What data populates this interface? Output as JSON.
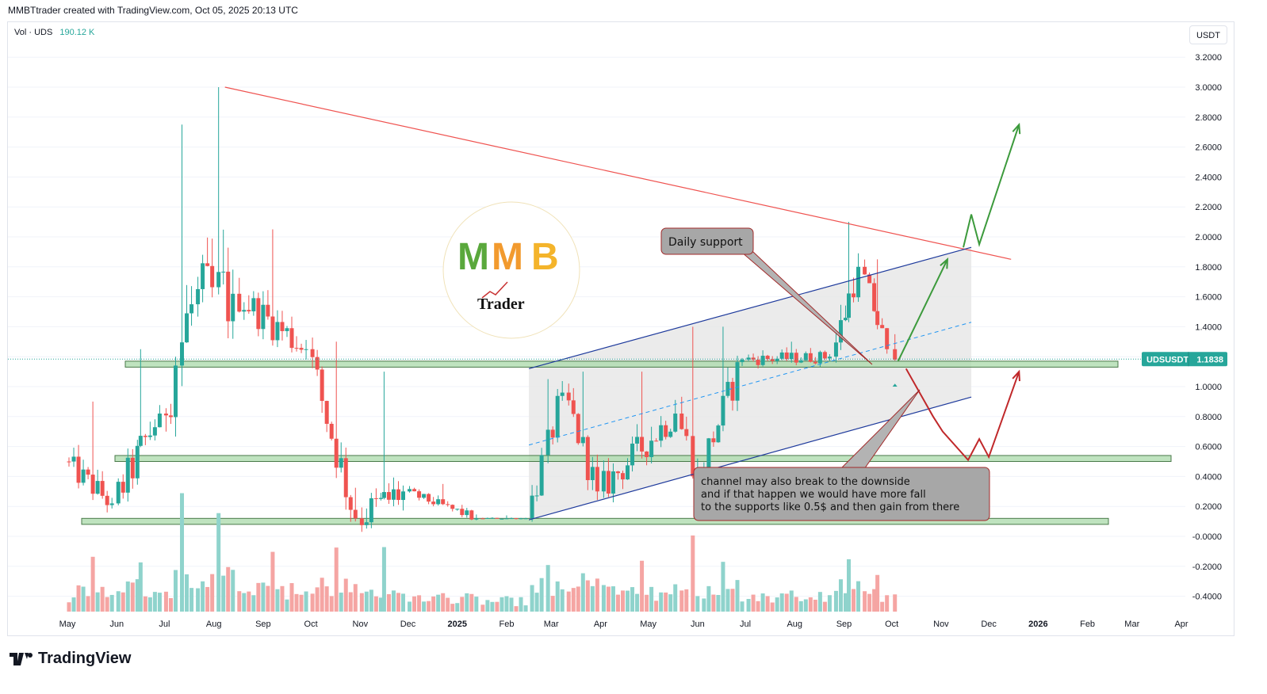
{
  "header": {
    "attribution": "MMBTtrader created with TradingView.com, Oct 05, 2025 20:13 UTC"
  },
  "volume_legend": {
    "label": "Vol · UDS",
    "value": "190.12 K"
  },
  "price_axis_unit": "USDT",
  "price_tag": {
    "symbol": "UDSUSDT",
    "price": "1.1838"
  },
  "footer": {
    "brand": "TradingView"
  },
  "colors": {
    "up": "#26a69a",
    "down": "#ef5350",
    "vol_up": "#8fd3cc",
    "vol_down": "#f5a5a3",
    "trend": "#ef5350",
    "channel": "#1e3a9c",
    "zone": "#a9d9a9",
    "arrow_up": "#3c9a3c",
    "arrow_down": "#c0282a"
  },
  "logo": {
    "letters": "MMB",
    "sub": "Trader"
  },
  "annotations": {
    "daily_support": "Daily support",
    "channel_note": [
      "channel may also break to the downside",
      "and if that happen we would have more fall",
      "to the supports like 0.5$ and then gain from there"
    ]
  },
  "chart_data": {
    "type": "candlestick",
    "symbol": "UDSUSDT",
    "ylim": [
      -0.5,
      3.3
    ],
    "y_ticks": [
      "3.2000",
      "3.0000",
      "2.8000",
      "2.6000",
      "2.4000",
      "2.2000",
      "2.0000",
      "1.8000",
      "1.6000",
      "1.4000",
      "1.2000",
      "1.0000",
      "0.8000",
      "0.6000",
      "0.4000",
      "0.2000",
      "-0.0000",
      "-0.2000",
      "-0.4000"
    ],
    "x_ticks": [
      "May",
      "Jun",
      "Jul",
      "Aug",
      "Sep",
      "Oct",
      "Nov",
      "Dec",
      "2025",
      "Feb",
      "Mar",
      "Apr",
      "May",
      "Jun",
      "Jul",
      "Aug",
      "Sep",
      "Oct",
      "Nov",
      "Dec",
      "2026",
      "Feb",
      "Mar",
      "Apr"
    ],
    "last_price": 1.1838,
    "support_zones": [
      [
        1.13,
        1.17
      ],
      [
        0.5,
        0.54
      ],
      [
        0.08,
        0.12
      ]
    ],
    "price_segments": [
      {
        "from": "2024-05-01",
        "to": "2024-05-31",
        "o": 0.5,
        "c": 0.22,
        "hi": 0.9,
        "lo": 0.16
      },
      {
        "from": "2024-06-01",
        "to": "2024-06-30",
        "o": 0.22,
        "c": 0.82,
        "hi": 1.25,
        "lo": 0.15
      },
      {
        "from": "2024-07-01",
        "to": "2024-07-20",
        "o": 0.82,
        "c": 1.55,
        "hi": 2.75,
        "lo": 0.5
      },
      {
        "from": "2024-07-21",
        "to": "2024-08-15",
        "o": 1.55,
        "c": 1.62,
        "hi": 3.0,
        "lo": 0.65
      },
      {
        "from": "2024-08-16",
        "to": "2024-09-30",
        "o": 1.62,
        "c": 1.25,
        "hi": 2.05,
        "lo": 1.1
      },
      {
        "from": "2024-10-01",
        "to": "2024-10-31",
        "o": 1.25,
        "c": 0.12,
        "hi": 1.3,
        "lo": 0.05
      },
      {
        "from": "2024-11-01",
        "to": "2024-11-30",
        "o": 0.12,
        "c": 0.3,
        "hi": 1.1,
        "lo": 0.05
      },
      {
        "from": "2024-12-01",
        "to": "2025-01-15",
        "o": 0.3,
        "c": 0.12,
        "hi": 0.35,
        "lo": 0.08
      },
      {
        "from": "2025-01-16",
        "to": "2025-02-15",
        "o": 0.12,
        "c": 0.12,
        "hi": 0.14,
        "lo": 0.1
      },
      {
        "from": "2025-02-16",
        "to": "2025-03-10",
        "o": 0.12,
        "c": 0.96,
        "hi": 1.05,
        "lo": 0.1
      },
      {
        "from": "2025-03-11",
        "to": "2025-04-01",
        "o": 0.96,
        "c": 0.3,
        "hi": 1.1,
        "lo": 0.15
      },
      {
        "from": "2025-04-02",
        "to": "2025-05-20",
        "o": 0.3,
        "c": 0.82,
        "hi": 1.1,
        "lo": 0.2
      },
      {
        "from": "2025-05-21",
        "to": "2025-06-03",
        "o": 0.82,
        "c": 0.42,
        "hi": 1.4,
        "lo": 0.38
      },
      {
        "from": "2025-06-04",
        "to": "2025-07-01",
        "o": 0.42,
        "c": 1.18,
        "hi": 1.4,
        "lo": 0.4
      },
      {
        "from": "2025-07-02",
        "to": "2025-08-25",
        "o": 1.18,
        "c": 1.2,
        "hi": 1.3,
        "lo": 0.95
      },
      {
        "from": "2025-08-26",
        "to": "2025-09-12",
        "o": 1.2,
        "c": 1.8,
        "hi": 2.1,
        "lo": 1.18
      },
      {
        "from": "2025-09-13",
        "to": "2025-09-30",
        "o": 1.8,
        "c": 1.25,
        "hi": 1.85,
        "lo": 1.15
      },
      {
        "from": "2025-10-01",
        "to": "2025-10-05",
        "o": 1.25,
        "c": 1.18,
        "hi": 1.35,
        "lo": 1.1
      }
    ],
    "trendline": [
      {
        "date": "2024-08-08",
        "price": 3.0
      },
      {
        "date": "2025-12-15",
        "price": 1.85
      }
    ],
    "channel_upper": [
      {
        "date": "2025-02-15",
        "price": 1.12
      },
      {
        "date": "2025-11-20",
        "price": 1.93
      }
    ],
    "channel_lower": [
      {
        "date": "2025-02-15",
        "price": 0.11
      },
      {
        "date": "2025-11-20",
        "price": 0.93
      }
    ],
    "projection_up": [
      {
        "date": "2025-10-05",
        "price": 1.17
      },
      {
        "date": "2025-11-05",
        "price": 1.85
      },
      {
        "date": "2025-11-15",
        "price": 1.8
      },
      {
        "date": "2025-11-20",
        "price": 2.15
      },
      {
        "date": "2025-11-25",
        "price": 1.95
      },
      {
        "date": "2025-12-20",
        "price": 2.75
      }
    ],
    "projection_down": [
      {
        "date": "2025-10-10",
        "price": 1.12
      },
      {
        "date": "2025-10-27",
        "price": 0.8
      },
      {
        "date": "2025-11-02",
        "price": 0.7
      },
      {
        "date": "2025-11-18",
        "price": 0.51
      },
      {
        "date": "2025-11-25",
        "price": 0.65
      },
      {
        "date": "2025-12-01",
        "price": 0.53
      },
      {
        "date": "2025-12-20",
        "price": 1.1
      }
    ]
  }
}
